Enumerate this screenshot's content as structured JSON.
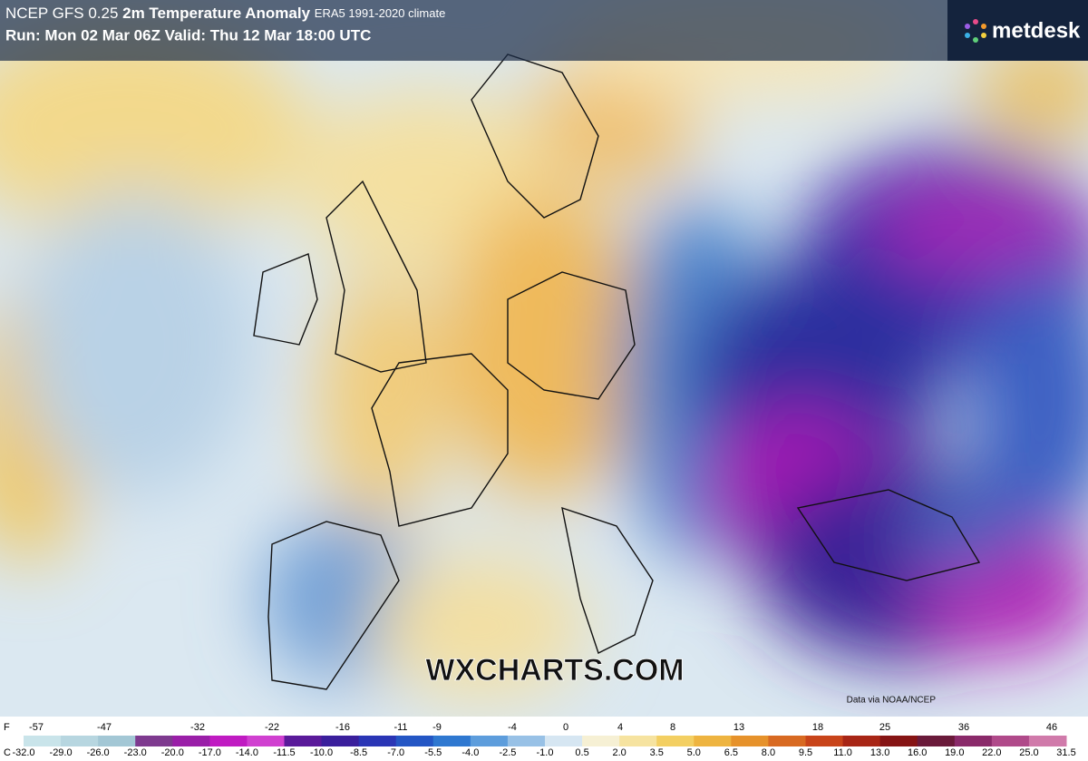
{
  "header": {
    "model": "NCEP GFS 0.25",
    "title": "2m Temperature Anomaly",
    "climate": "ERA5 1991-2020 climate",
    "run": "Run: Mon 02 Mar 06Z Valid: Thu 12 Mar 18:00 UTC"
  },
  "logo": "metdesk",
  "watermark": "WXCHARTS.COM",
  "credit": "Data via NOAA/NCEP",
  "legend": {
    "f_unit": "F",
    "f_labels": [
      "-57",
      "-47",
      "-32",
      "-22",
      "-16",
      "-11",
      "-9",
      "-4",
      "0",
      "4",
      "8",
      "13",
      "18",
      "25",
      "36",
      "46"
    ],
    "c_unit": "C",
    "c_labels": [
      "-32.0",
      "-29.0",
      "-26.0",
      "-23.0",
      "-20.0",
      "-17.0",
      "-14.0",
      "-11.5",
      "-10.0",
      "-8.5",
      "-7.0",
      "-5.5",
      "-4.0",
      "-2.5",
      "-1.0",
      "0.5",
      "2.0",
      "3.5",
      "5.0",
      "6.5",
      "8.0",
      "9.5",
      "11.0",
      "13.0",
      "16.0",
      "19.0",
      "22.0",
      "25.0",
      "31.5"
    ],
    "colors": [
      "#c9e4ea",
      "#b7d6e0",
      "#a3c7d5",
      "#7e3a8f",
      "#9a1fa8",
      "#c01bc2",
      "#d040d0",
      "#5a1a9a",
      "#3a1f9c",
      "#2a35b5",
      "#2456c4",
      "#2f78d0",
      "#5d9ddc",
      "#98c1e6",
      "#d6e6f2",
      "#f6f0d4",
      "#f6e3a0",
      "#f3cf62",
      "#eeb440",
      "#e6922b",
      "#d86a22",
      "#c8441a",
      "#a82616",
      "#861414",
      "#6a1a3a",
      "#8a2a6a",
      "#b04a8a",
      "#d07aaa"
    ]
  }
}
